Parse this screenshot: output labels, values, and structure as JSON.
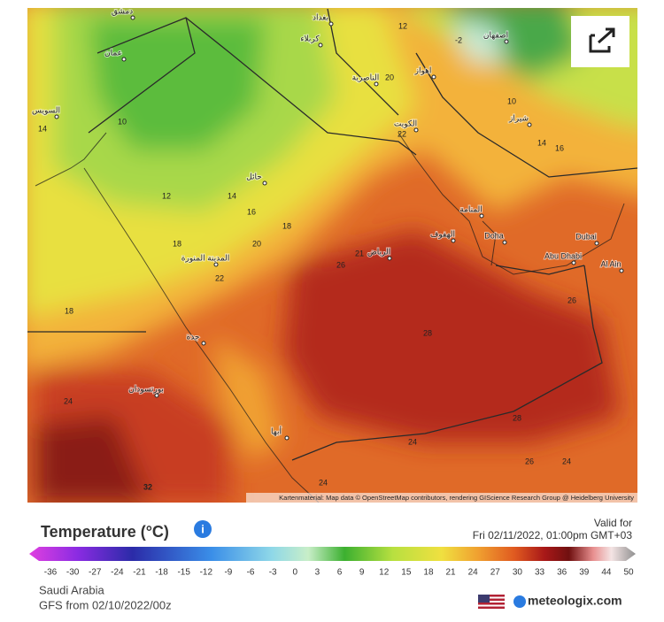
{
  "map": {
    "places": [
      "دمشق",
      "بغداد",
      "عمان",
      "الكويت",
      "الرياض",
      "المدينة المنورة",
      "جدة",
      "بورتسودان",
      "حائل",
      "الهفوف",
      "المنامة",
      "Doha",
      "Abu Dhabi",
      "Dubai",
      "Al Ain",
      "اصفهان",
      "شيراز",
      "اهواز",
      "الناصرية",
      "السويس",
      "أبها",
      "كربلاء"
    ],
    "isotherms": [
      -2,
      10,
      12,
      14,
      16,
      18,
      20,
      22,
      24,
      26,
      28,
      32,
      18,
      20,
      22,
      14,
      16,
      26,
      28,
      24,
      26,
      24,
      10,
      12,
      24,
      21,
      18,
      14
    ],
    "attribution": "Kartenmaterial: Map data © OpenStreetMap contributors, rendering GIScience Research Group @ Heidelberg University"
  },
  "legend": {
    "title": "Temperature (°C)",
    "valid_label": "Valid for",
    "valid_time": "Fri 02/11/2022, 01:00pm GMT+03",
    "ticks": [
      -36,
      -30,
      -27,
      -24,
      -21,
      -18,
      -15,
      -12,
      -9,
      -6,
      -3,
      0,
      3,
      6,
      9,
      12,
      15,
      18,
      21,
      24,
      27,
      30,
      33,
      36,
      39,
      44,
      50
    ]
  },
  "footer": {
    "region": "Saudi Arabia",
    "model": "GFS from 02/10/2022/00z",
    "brand": "meteologix.com"
  }
}
